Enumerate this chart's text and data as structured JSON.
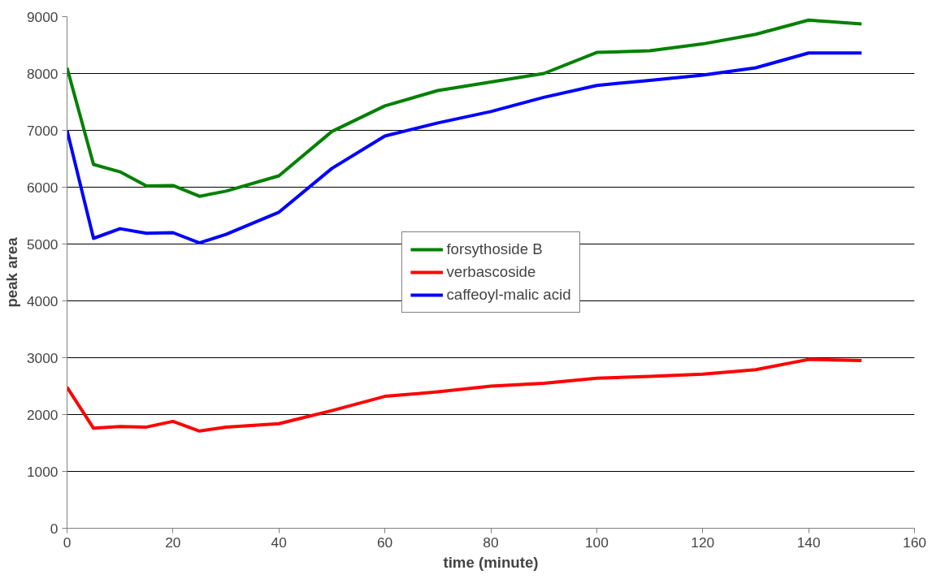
{
  "chart_data": {
    "type": "line",
    "xlabel": "time (minute)",
    "ylabel": "peak area",
    "x": [
      0,
      5,
      10,
      15,
      20,
      25,
      30,
      40,
      50,
      60,
      70,
      80,
      90,
      100,
      110,
      120,
      130,
      140,
      150
    ],
    "series": [
      {
        "name": "forsythoside B",
        "color": "#008000",
        "values": [
          8100,
          6400,
          6270,
          6020,
          6030,
          5840,
          5930,
          6200,
          6980,
          7430,
          7700,
          7850,
          8000,
          8370,
          8400,
          8520,
          8690,
          8940,
          8870
        ]
      },
      {
        "name": "verbascoside",
        "color": "#ff0000",
        "values": [
          2480,
          1760,
          1790,
          1780,
          1880,
          1710,
          1780,
          1840,
          2070,
          2320,
          2400,
          2500,
          2550,
          2640,
          2670,
          2710,
          2790,
          2970,
          2950
        ]
      },
      {
        "name": "caffeoyl-malic acid",
        "color": "#0000ff",
        "values": [
          7000,
          5100,
          5270,
          5190,
          5200,
          5020,
          5170,
          5560,
          6330,
          6900,
          7130,
          7330,
          7580,
          7790,
          7880,
          7970,
          8100,
          8360,
          8360
        ]
      }
    ],
    "xlim": [
      0,
      160
    ],
    "xticks": [
      0,
      20,
      40,
      60,
      80,
      100,
      120,
      140,
      160
    ],
    "ylim": [
      0,
      9000
    ],
    "yticks": [
      0,
      1000,
      2000,
      3000,
      4000,
      5000,
      6000,
      7000,
      8000,
      9000
    ],
    "grid": "y",
    "legend": "center",
    "marker": "none",
    "line_style": "solid"
  }
}
